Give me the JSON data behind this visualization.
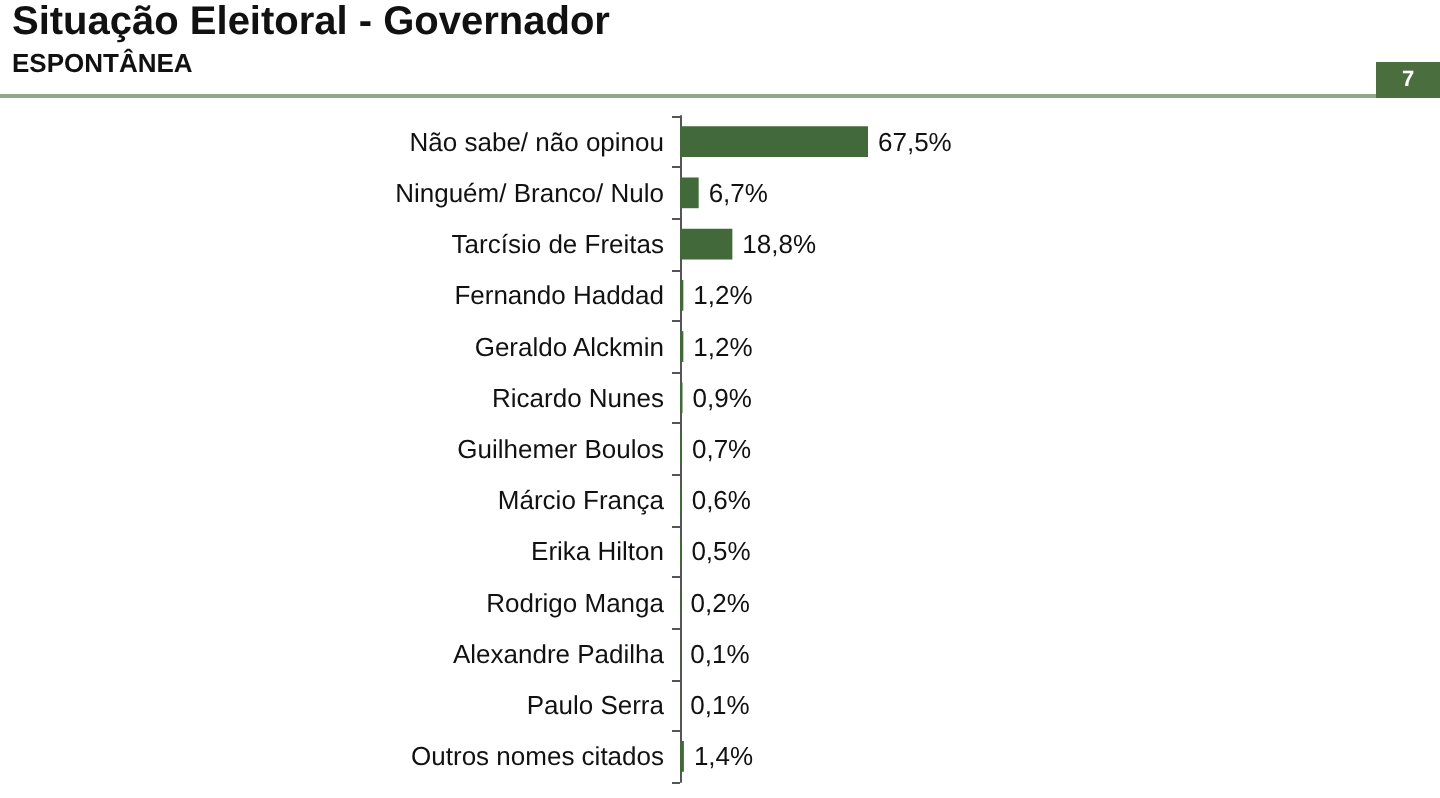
{
  "chart_data": {
    "type": "bar",
    "orientation": "horizontal",
    "title": "Situação Eleitoral - Governador",
    "subtitle": "ESPONTÂNEA",
    "annotations": [
      "7"
    ],
    "categories": [
      "Não sabe/ não opinou",
      "Ninguém/ Branco/ Nulo",
      "Tarcísio de Freitas",
      "Fernando Haddad",
      "Geraldo Alckmin",
      "Ricardo Nunes",
      "Guilhemer Boulos",
      "Márcio França",
      "Erika Hilton",
      "Rodrigo Manga",
      "Alexandre Padilha",
      "Paulo Serra",
      "Outros nomes citados"
    ],
    "values": [
      67.5,
      6.7,
      18.8,
      1.2,
      1.2,
      0.9,
      0.7,
      0.6,
      0.5,
      0.2,
      0.1,
      0.1,
      1.4
    ],
    "value_labels": [
      "67,5%",
      "6,7%",
      "18,8%",
      "1,2%",
      "1,2%",
      "0,9%",
      "0,7%",
      "0,6%",
      "0,5%",
      "0,2%",
      "0,1%",
      "0,1%",
      "1,4%"
    ],
    "color": "#41693a"
  }
}
